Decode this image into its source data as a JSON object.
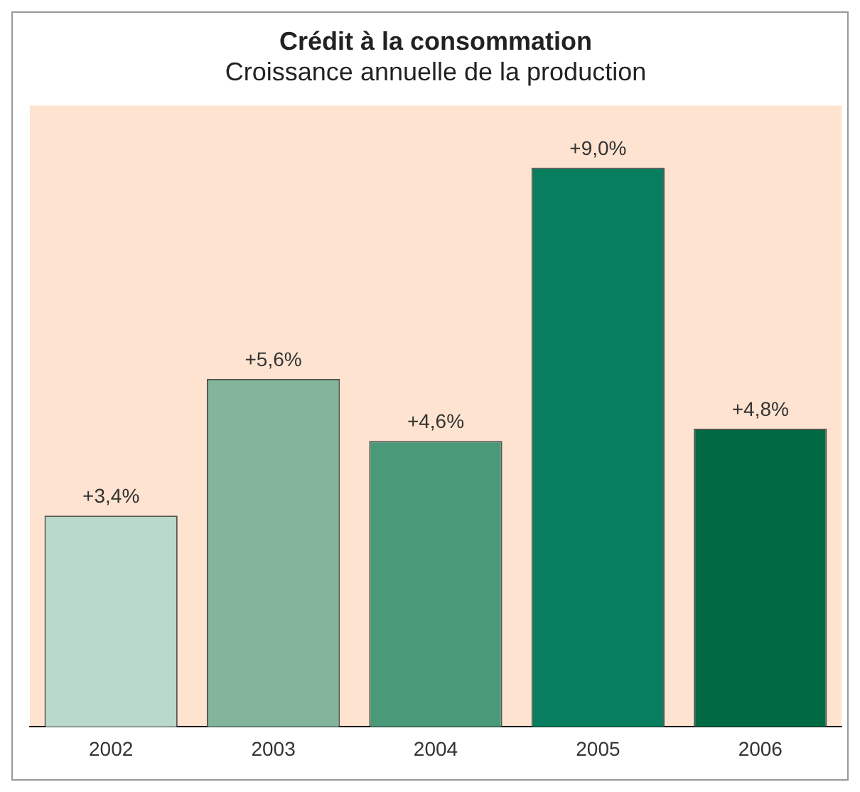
{
  "chart_data": {
    "type": "bar",
    "title": "Crédit à la consommation",
    "subtitle": "Croissance annuelle de la production",
    "categories": [
      "2002",
      "2003",
      "2004",
      "2005",
      "2006"
    ],
    "values": [
      3.4,
      5.6,
      4.6,
      9.0,
      4.8
    ],
    "colors": [
      "#b9d9cb",
      "#83b59c",
      "#4a9a7a",
      "#077f5e",
      "#006b43"
    ],
    "value_labels": [
      "+3,4%",
      "+5,6%",
      "+4,6%",
      "+9,0%",
      "+4,8%"
    ],
    "grid": false,
    "legend": false
  }
}
